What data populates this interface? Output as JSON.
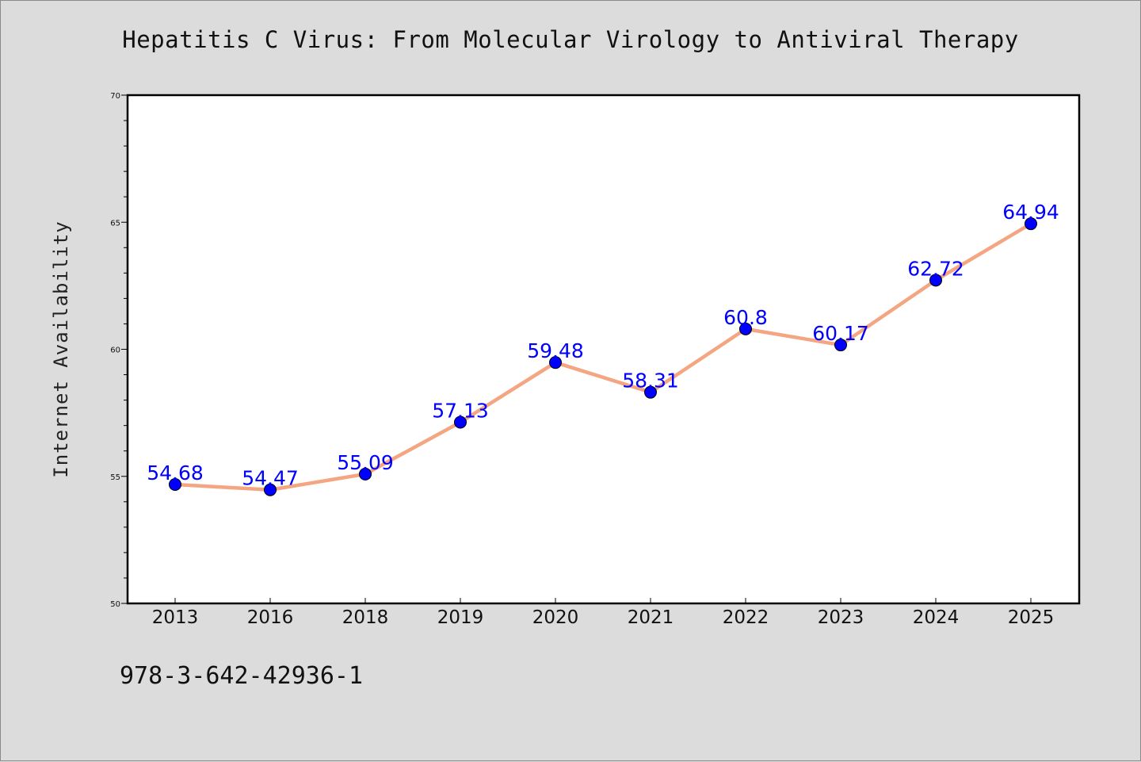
{
  "page": {
    "title": "Hepatitis C Virus: From Molecular Virology to Antiviral Therapy",
    "isbn": "978-3-642-42936-1"
  },
  "colors": {
    "background": "#dcdcdc",
    "plot_background": "#ffffff",
    "line": "#f4a582",
    "marker": "#0000ff",
    "data_label": "#0000ff"
  },
  "chart_data": {
    "type": "line",
    "title": "Hepatitis C Virus: From Molecular Virology to Antiviral Therapy",
    "xlabel": "",
    "ylabel": "Internet Availability",
    "categories": [
      "2013",
      "2016",
      "2018",
      "2019",
      "2020",
      "2021",
      "2022",
      "2023",
      "2024",
      "2025"
    ],
    "series": [
      {
        "values": [
          54.68,
          54.47,
          55.09,
          57.13,
          59.48,
          58.31,
          60.8,
          60.17,
          62.72,
          64.94
        ],
        "data_labels": [
          "54.68",
          "54.47",
          "55.09",
          "57.13",
          "59.48",
          "58.31",
          "60.8",
          "60.17",
          "62.72",
          "64.94"
        ]
      }
    ],
    "ylim": [
      50,
      70
    ],
    "yticks": [
      "50",
      "55",
      "60",
      "65",
      "70"
    ],
    "grid": false,
    "legend": "none"
  }
}
